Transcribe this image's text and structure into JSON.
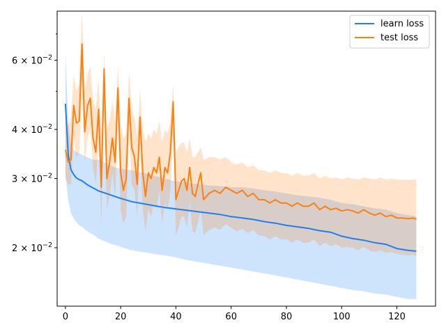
{
  "chart_data": {
    "type": "line",
    "title": "",
    "xlabel": "",
    "ylabel": "",
    "xlim": [
      -3,
      134
    ],
    "ylim": [
      0.0142,
      0.08
    ],
    "yscale": "log",
    "grid": false,
    "legend_position": "top-right",
    "x_ticks": [
      0,
      20,
      40,
      60,
      80,
      100,
      120
    ],
    "x_tick_labels": [
      "0",
      "20",
      "40",
      "60",
      "80",
      "100",
      "120"
    ],
    "y_ticks": [
      0.02,
      0.03,
      0.04,
      0.06
    ],
    "y_tick_labels": [
      {
        "mantissa": "2",
        "base": "10",
        "exp": "−2"
      },
      {
        "mantissa": "3",
        "base": "10",
        "exp": "−2"
      },
      {
        "mantissa": "4",
        "base": "10",
        "exp": "−2"
      },
      {
        "mantissa": "6",
        "base": "10",
        "exp": "−2"
      }
    ],
    "y_minor_ticks": [
      0.05,
      0.07
    ],
    "series": [
      {
        "name": "learn loss",
        "color": "#1f7ff0",
        "band_color": "#1f7ff0",
        "x": [
          0,
          1,
          2,
          3,
          4,
          5,
          6,
          8,
          10,
          12,
          14,
          16,
          18,
          20,
          24,
          28,
          32,
          36,
          40,
          44,
          48,
          52,
          56,
          60,
          64,
          68,
          72,
          76,
          80,
          84,
          88,
          92,
          96,
          100,
          104,
          108,
          112,
          116,
          120,
          124,
          127
        ],
        "y": [
          0.0465,
          0.0345,
          0.0316,
          0.0307,
          0.0301,
          0.0298,
          0.0296,
          0.0289,
          0.0284,
          0.0279,
          0.0276,
          0.0273,
          0.027,
          0.0267,
          0.0262,
          0.0259,
          0.0256,
          0.0253,
          0.0251,
          0.0249,
          0.0247,
          0.0245,
          0.0243,
          0.024,
          0.0238,
          0.0236,
          0.0233,
          0.0231,
          0.0228,
          0.0226,
          0.0224,
          0.0221,
          0.0219,
          0.0214,
          0.0211,
          0.0209,
          0.0206,
          0.0204,
          0.0199,
          0.0197,
          0.0196
        ],
        "upper": [
          0.063,
          0.042,
          0.0365,
          0.0355,
          0.035,
          0.0348,
          0.0345,
          0.034,
          0.0335,
          0.0335,
          0.033,
          0.0325,
          0.032,
          0.0318,
          0.0315,
          0.031,
          0.0305,
          0.03,
          0.0295,
          0.0293,
          0.029,
          0.0288,
          0.0287,
          0.0285,
          0.0285,
          0.0283,
          0.028,
          0.0278,
          0.0275,
          0.0272,
          0.027,
          0.0268,
          0.0265,
          0.026,
          0.0258,
          0.0255,
          0.0252,
          0.025,
          0.0245,
          0.0242,
          0.024
        ],
        "lower": [
          0.0305,
          0.0265,
          0.0245,
          0.0238,
          0.0232,
          0.0228,
          0.0226,
          0.022,
          0.0216,
          0.0211,
          0.0208,
          0.0205,
          0.0203,
          0.0201,
          0.0197,
          0.0195,
          0.0193,
          0.0191,
          0.0189,
          0.0186,
          0.0184,
          0.0182,
          0.018,
          0.0178,
          0.0176,
          0.0174,
          0.0172,
          0.017,
          0.0168,
          0.0166,
          0.0164,
          0.0162,
          0.016,
          0.0158,
          0.0156,
          0.0155,
          0.0153,
          0.0152,
          0.015,
          0.0148,
          0.0148
        ]
      },
      {
        "name": "test loss",
        "color": "#ff7f0e",
        "band_color": "#ff7f0e",
        "x": [
          0,
          1,
          2,
          3,
          4,
          5,
          6,
          7,
          8,
          9,
          10,
          11,
          12,
          13,
          14,
          15,
          16,
          17,
          18,
          19,
          20,
          21,
          22,
          23,
          24,
          25,
          26,
          27,
          28,
          29,
          30,
          31,
          32,
          33,
          34,
          35,
          36,
          37,
          38,
          39,
          40,
          41,
          42,
          43,
          44,
          45,
          46,
          47,
          48,
          49,
          50,
          52,
          54,
          56,
          58,
          60,
          62,
          64,
          66,
          68,
          70,
          72,
          74,
          76,
          78,
          80,
          82,
          84,
          86,
          88,
          90,
          92,
          94,
          96,
          98,
          100,
          102,
          104,
          106,
          108,
          110,
          112,
          114,
          116,
          118,
          120,
          122,
          124,
          126,
          127
        ],
        "y": [
          0.0355,
          0.033,
          0.0335,
          0.046,
          0.0415,
          0.042,
          0.066,
          0.0395,
          0.046,
          0.048,
          0.038,
          0.035,
          0.045,
          0.0285,
          0.057,
          0.03,
          0.033,
          0.038,
          0.033,
          0.051,
          0.031,
          0.028,
          0.03,
          0.048,
          0.036,
          0.034,
          0.029,
          0.043,
          0.031,
          0.027,
          0.031,
          0.03,
          0.032,
          0.031,
          0.034,
          0.028,
          0.032,
          0.031,
          0.035,
          0.047,
          0.0265,
          0.028,
          0.0295,
          0.03,
          0.028,
          0.032,
          0.0275,
          0.027,
          0.029,
          0.031,
          0.0265,
          0.0275,
          0.028,
          0.0275,
          0.0285,
          0.028,
          0.0275,
          0.028,
          0.027,
          0.0275,
          0.0265,
          0.0265,
          0.026,
          0.0265,
          0.026,
          0.026,
          0.0255,
          0.026,
          0.0255,
          0.0255,
          0.026,
          0.025,
          0.0255,
          0.025,
          0.0252,
          0.0248,
          0.025,
          0.0248,
          0.0245,
          0.025,
          0.0245,
          0.0242,
          0.0245,
          0.024,
          0.0242,
          0.0238,
          0.0238,
          0.0237,
          0.0238,
          0.0236
        ],
        "upper": [
          0.042,
          0.041,
          0.043,
          0.055,
          0.05,
          0.052,
          0.08,
          0.05,
          0.055,
          0.058,
          0.048,
          0.045,
          0.054,
          0.038,
          0.063,
          0.04,
          0.042,
          0.047,
          0.042,
          0.058,
          0.041,
          0.038,
          0.039,
          0.056,
          0.045,
          0.043,
          0.038,
          0.05,
          0.04,
          0.037,
          0.039,
          0.038,
          0.04,
          0.039,
          0.042,
          0.037,
          0.04,
          0.039,
          0.042,
          0.052,
          0.035,
          0.036,
          0.037,
          0.037,
          0.035,
          0.038,
          0.034,
          0.034,
          0.035,
          0.036,
          0.0335,
          0.034,
          0.034,
          0.0335,
          0.034,
          0.033,
          0.0325,
          0.033,
          0.032,
          0.0325,
          0.0315,
          0.0315,
          0.031,
          0.0315,
          0.031,
          0.031,
          0.0305,
          0.031,
          0.0305,
          0.0305,
          0.031,
          0.03,
          0.0305,
          0.03,
          0.0302,
          0.0298,
          0.0302,
          0.03,
          0.0298,
          0.0302,
          0.03,
          0.0298,
          0.0302,
          0.0298,
          0.03,
          0.0298,
          0.0298,
          0.0298,
          0.0298,
          0.0298
        ],
        "lower": [
          0.03,
          0.029,
          0.029,
          0.038,
          0.034,
          0.035,
          0.05,
          0.033,
          0.038,
          0.04,
          0.032,
          0.029,
          0.037,
          0.023,
          0.047,
          0.025,
          0.027,
          0.031,
          0.027,
          0.042,
          0.025,
          0.023,
          0.024,
          0.039,
          0.029,
          0.028,
          0.024,
          0.036,
          0.025,
          0.022,
          0.025,
          0.024,
          0.026,
          0.025,
          0.028,
          0.023,
          0.026,
          0.025,
          0.028,
          0.04,
          0.0215,
          0.0225,
          0.024,
          0.024,
          0.0225,
          0.026,
          0.022,
          0.0218,
          0.0232,
          0.025,
          0.0215,
          0.0222,
          0.0225,
          0.0222,
          0.023,
          0.0225,
          0.022,
          0.0224,
          0.0218,
          0.0222,
          0.0215,
          0.0214,
          0.021,
          0.0214,
          0.021,
          0.021,
          0.0206,
          0.021,
          0.0206,
          0.0206,
          0.021,
          0.0202,
          0.0206,
          0.0202,
          0.0204,
          0.02,
          0.0201,
          0.02,
          0.0197,
          0.0201,
          0.0197,
          0.0195,
          0.0197,
          0.0194,
          0.0195,
          0.0193,
          0.0192,
          0.0191,
          0.0192,
          0.019
        ]
      }
    ]
  }
}
